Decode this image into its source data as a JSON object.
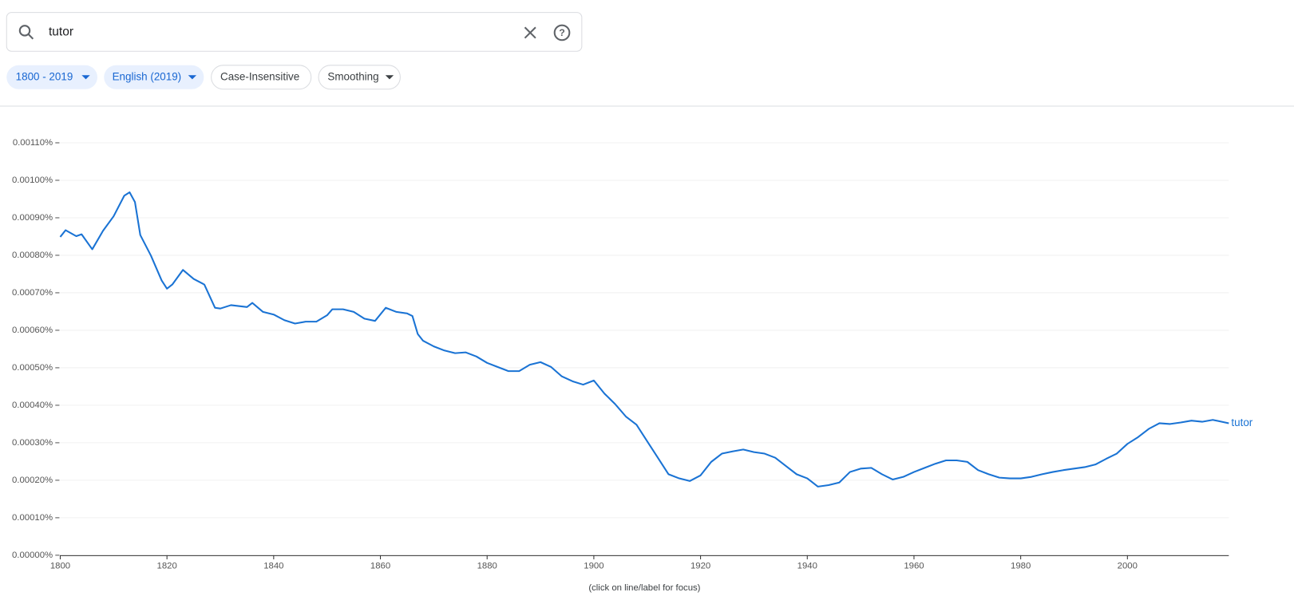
{
  "ui": {
    "search": "tutor",
    "chips": [
      "1800 - 2019",
      "English (2019)",
      "Case-Insensitive",
      "Smoothing"
    ]
  },
  "chart_data": {
    "type": "line",
    "note": "(click on line/label for focus)",
    "x": [
      1800,
      1801,
      1803,
      1804,
      1806,
      1808,
      1810,
      1812,
      1813,
      1814,
      1815,
      1817,
      1819,
      1820,
      1821,
      1823,
      1825,
      1827,
      1829,
      1830,
      1832,
      1835,
      1836,
      1838,
      1840,
      1842,
      1844,
      1846,
      1848,
      1850,
      1851,
      1853,
      1855,
      1857,
      1859,
      1861,
      1863,
      1865,
      1866,
      1867,
      1868,
      1870,
      1872,
      1874,
      1876,
      1878,
      1880,
      1882,
      1884,
      1886,
      1888,
      1890,
      1892,
      1894,
      1896,
      1898,
      1900,
      1902,
      1904,
      1906,
      1908,
      1910,
      1912,
      1914,
      1916,
      1918,
      1920,
      1922,
      1924,
      1926,
      1928,
      1930,
      1932,
      1934,
      1936,
      1938,
      1940,
      1942,
      1944,
      1946,
      1948,
      1950,
      1952,
      1954,
      1956,
      1958,
      1960,
      1962,
      1964,
      1966,
      1968,
      1970,
      1972,
      1974,
      1976,
      1978,
      1980,
      1982,
      1984,
      1986,
      1988,
      1990,
      1992,
      1994,
      1996,
      1998,
      2000,
      2002,
      2004,
      2006,
      2008,
      2010,
      2012,
      2014,
      2016,
      2019
    ],
    "series": [
      {
        "name": "tutor",
        "color": "#1a73d4",
        "values": [
          0.000849,
          0.000867,
          0.000851,
          0.000856,
          0.000816,
          0.000865,
          0.000904,
          0.000959,
          0.000968,
          0.000942,
          0.000854,
          0.000799,
          0.000733,
          0.000711,
          0.000722,
          0.000761,
          0.000737,
          0.000722,
          0.00066,
          0.000658,
          0.000667,
          0.000662,
          0.000673,
          0.000649,
          0.000642,
          0.000627,
          0.000618,
          0.000623,
          0.000623,
          0.00064,
          0.000656,
          0.000656,
          0.000649,
          0.000631,
          0.000625,
          0.00066,
          0.000649,
          0.000645,
          0.000638,
          0.00059,
          0.000572,
          0.000557,
          0.000546,
          0.000539,
          0.000541,
          0.00053,
          0.000513,
          0.000502,
          0.000491,
          0.000491,
          0.000508,
          0.000515,
          0.000502,
          0.000477,
          0.000464,
          0.000455,
          0.000466,
          0.000431,
          0.000403,
          0.00037,
          0.000348,
          0.000304,
          0.00026,
          0.000216,
          0.000205,
          0.000198,
          0.000213,
          0.000249,
          0.000271,
          0.000277,
          0.000282,
          0.000275,
          0.000271,
          0.00026,
          0.000238,
          0.000216,
          0.000205,
          0.000183,
          0.000187,
          0.000194,
          0.000222,
          0.000231,
          0.000233,
          0.000216,
          0.000202,
          0.000209,
          0.000222,
          0.000233,
          0.000244,
          0.000253,
          0.000253,
          0.000249,
          0.000227,
          0.000216,
          0.000207,
          0.000205,
          0.000205,
          0.000209,
          0.000216,
          0.000222,
          0.000227,
          0.000231,
          0.000235,
          0.000242,
          0.000257,
          0.000271,
          0.000297,
          0.000315,
          0.000337,
          0.000352,
          0.00035,
          0.000354,
          0.000359,
          0.000356,
          0.000361,
          0.000352
        ]
      }
    ],
    "xlim": [
      1800,
      2019
    ],
    "ylim": [
      0,
      0.0011
    ],
    "xticks": [
      1800,
      1820,
      1840,
      1860,
      1880,
      1900,
      1920,
      1940,
      1960,
      1980,
      2000
    ],
    "yticks": [
      {
        "value": 0,
        "label": "0.00000%"
      },
      {
        "value": 0.0001,
        "label": "0.00010%"
      },
      {
        "value": 0.0002,
        "label": "0.00020%"
      },
      {
        "value": 0.0003,
        "label": "0.00030%"
      },
      {
        "value": 0.0004,
        "label": "0.00040%"
      },
      {
        "value": 0.0005,
        "label": "0.00050%"
      },
      {
        "value": 0.0006,
        "label": "0.00060%"
      },
      {
        "value": 0.0007,
        "label": "0.00070%"
      },
      {
        "value": 0.0008,
        "label": "0.00080%"
      },
      {
        "value": 0.0009,
        "label": "0.00090%"
      },
      {
        "value": 0.001,
        "label": "0.00100%"
      },
      {
        "value": 0.0011,
        "label": "0.00110%"
      }
    ],
    "grid": true
  }
}
